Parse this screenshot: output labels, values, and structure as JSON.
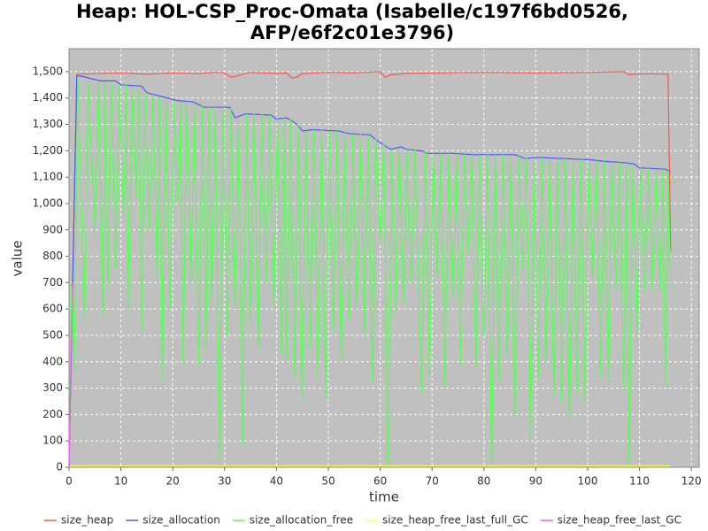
{
  "chart_data": {
    "type": "line",
    "title": [
      "Heap: HOL-CSP_Proc-Omata (Isabelle/c197f6bd0526,",
      "AFP/e6f2c01e3796)"
    ],
    "xlabel": "time",
    "ylabel": "value",
    "xlim": [
      0,
      121.5
    ],
    "ylim": [
      0,
      1587
    ],
    "xticks": [
      0,
      10,
      20,
      30,
      40,
      50,
      60,
      70,
      80,
      90,
      100,
      110,
      120
    ],
    "yticks": [
      0,
      100,
      200,
      300,
      400,
      500,
      600,
      700,
      800,
      900,
      {
        "value": 1000,
        "label": "1,000"
      },
      {
        "value": 1100,
        "label": "1,100"
      },
      {
        "value": 1200,
        "label": "1,200"
      },
      {
        "value": 1300,
        "label": "1,300"
      },
      {
        "value": 1400,
        "label": "1,400"
      },
      {
        "value": 1500,
        "label": "1,500"
      }
    ],
    "grid": true,
    "legend": "bottom",
    "series": [
      {
        "name": "size_heap",
        "color": "#ff5555",
        "x": [
          0,
          1.5,
          5,
          10,
          15,
          20,
          25,
          28,
          30,
          31,
          32,
          35,
          40,
          42,
          43,
          44,
          45,
          50,
          55,
          60,
          61,
          62,
          65,
          70,
          80,
          90,
          100,
          107,
          108,
          109,
          112,
          115.5,
          116
        ],
        "values": [
          0,
          1490,
          1492,
          1495,
          1490,
          1495,
          1492,
          1497,
          1495,
          1480,
          1482,
          1497,
          1493,
          1495,
          1475,
          1480,
          1493,
          1497,
          1495,
          1500,
          1478,
          1488,
          1493,
          1495,
          1497,
          1495,
          1497,
          1500,
          1488,
          1490,
          1492,
          1490,
          820
        ]
      },
      {
        "name": "size_allocation",
        "color": "#5555ff",
        "x": [
          0,
          1.5,
          3,
          6,
          9,
          10,
          14,
          15,
          18,
          21,
          24,
          26,
          31,
          32,
          34,
          39,
          40,
          42,
          44,
          45,
          47,
          52,
          54,
          58,
          59,
          62,
          64,
          65,
          68,
          69,
          74,
          78,
          86,
          88,
          90,
          96,
          101,
          103,
          107,
          109,
          110,
          115,
          116
        ],
        "values": [
          0,
          1485,
          1480,
          1465,
          1465,
          1450,
          1445,
          1420,
          1405,
          1390,
          1385,
          1365,
          1365,
          1325,
          1340,
          1335,
          1320,
          1325,
          1300,
          1275,
          1280,
          1275,
          1265,
          1260,
          1245,
          1205,
          1215,
          1205,
          1200,
          1190,
          1190,
          1185,
          1185,
          1170,
          1175,
          1170,
          1165,
          1160,
          1155,
          1150,
          1135,
          1130,
          1120
        ]
      },
      {
        "name": "size_allocation_free",
        "color": "#55ff55",
        "x": [
          0,
          0.5,
          1,
          1.7,
          3,
          3.7,
          5,
          5.7,
          6.5,
          7,
          7.5,
          8.2,
          9,
          9.7,
          10.5,
          11,
          11.5,
          12.2,
          13,
          13.5,
          14,
          14.7,
          15.5,
          16.2,
          17,
          17.5,
          18,
          18.7,
          19.5,
          20.2,
          21,
          21.5,
          22,
          22.7,
          23.5,
          24.2,
          25,
          25.7,
          26.5,
          27,
          27.5,
          28.2,
          29,
          29.7,
          30.5,
          31.2,
          32,
          32.7,
          33.5,
          34.2,
          35,
          35.7,
          36.5,
          37.2,
          38,
          38.7,
          39.5,
          40.2,
          41,
          41.5,
          42,
          42.7,
          43.5,
          44.2,
          45,
          45.7,
          46.5,
          47.2,
          48,
          48.7,
          49.5,
          50.2,
          51,
          51.7,
          52.5,
          53.2,
          54,
          54.7,
          55.5,
          56.2,
          57,
          57.7,
          58.5,
          59.2,
          60,
          60.7,
          61.5,
          62.2,
          63,
          63.7,
          64.5,
          65.2,
          66,
          66.7,
          68,
          68.7,
          69.5,
          70.2,
          71,
          71.7,
          72.5,
          73.2,
          74,
          74.7,
          75.5,
          76.2,
          77,
          77.7,
          78.5,
          79.2,
          80,
          80.7,
          81.5,
          82.2,
          83,
          83.7,
          84.5,
          85.2,
          86,
          86.7,
          87.5,
          88.2,
          89,
          89.7,
          90.5,
          91.2,
          92,
          92.7,
          93.5,
          94.2,
          95,
          95.7,
          96.5,
          97.2,
          98,
          98.7,
          99.5,
          100.2,
          101,
          101.7,
          102.5,
          103.2,
          104,
          104.7,
          105.5,
          106.2,
          107,
          107.5,
          108,
          108.7,
          109.5,
          110.2,
          111,
          111.7,
          112.5,
          113.2,
          114,
          114.5,
          115,
          115.5,
          116
        ],
        "values": [
          0,
          700,
          360,
          1480,
          560,
          1470,
          900,
          1465,
          580,
          1460,
          680,
          1460,
          750,
          1450,
          950,
          1450,
          580,
          1445,
          1020,
          1440,
          510,
          1420,
          900,
          1410,
          700,
          1405,
          310,
          1400,
          600,
          1390,
          1000,
          1385,
          390,
          1385,
          700,
          1380,
          390,
          1370,
          440,
          1365,
          620,
          1365,
          30,
          1365,
          500,
          1360,
          600,
          1325,
          90,
          1340,
          550,
          1340,
          450,
          1340,
          700,
          1335,
          600,
          1320,
          430,
          1320,
          400,
          1320,
          330,
          1300,
          250,
          1275,
          450,
          1280,
          330,
          1280,
          260,
          1275,
          520,
          1275,
          400,
          1270,
          560,
          1265,
          600,
          1265,
          500,
          1260,
          320,
          1245,
          850,
          1240,
          0,
          1205,
          580,
          1210,
          620,
          1205,
          700,
          1205,
          280,
          1195,
          340,
          1190,
          720,
          1190,
          310,
          1190,
          640,
          1188,
          390,
          1187,
          800,
          1185,
          380,
          1185,
          500,
          1185,
          0,
          1185,
          330,
          1185,
          420,
          1183,
          200,
          1180,
          750,
          1172,
          110,
          1172,
          330,
          1172,
          400,
          1170,
          270,
          1170,
          250,
          1170,
          170,
          1168,
          280,
          1167,
          250,
          1165,
          720,
          1163,
          340,
          1160,
          320,
          1158,
          680,
          1157,
          290,
          1155,
          0,
          1150,
          500,
          1135,
          670,
          1133,
          660,
          1130,
          670,
          1130,
          310,
          1125,
          680
        ]
      },
      {
        "name": "size_heap_free_last_full_GC",
        "color": "#ffff55",
        "x": [
          0,
          116
        ],
        "values": [
          5,
          5
        ]
      },
      {
        "name": "size_heap_free_last_GC",
        "color": "#ff55ff",
        "x": [
          0,
          0.4,
          0.8
        ],
        "values": [
          0,
          450,
          700
        ]
      }
    ]
  }
}
